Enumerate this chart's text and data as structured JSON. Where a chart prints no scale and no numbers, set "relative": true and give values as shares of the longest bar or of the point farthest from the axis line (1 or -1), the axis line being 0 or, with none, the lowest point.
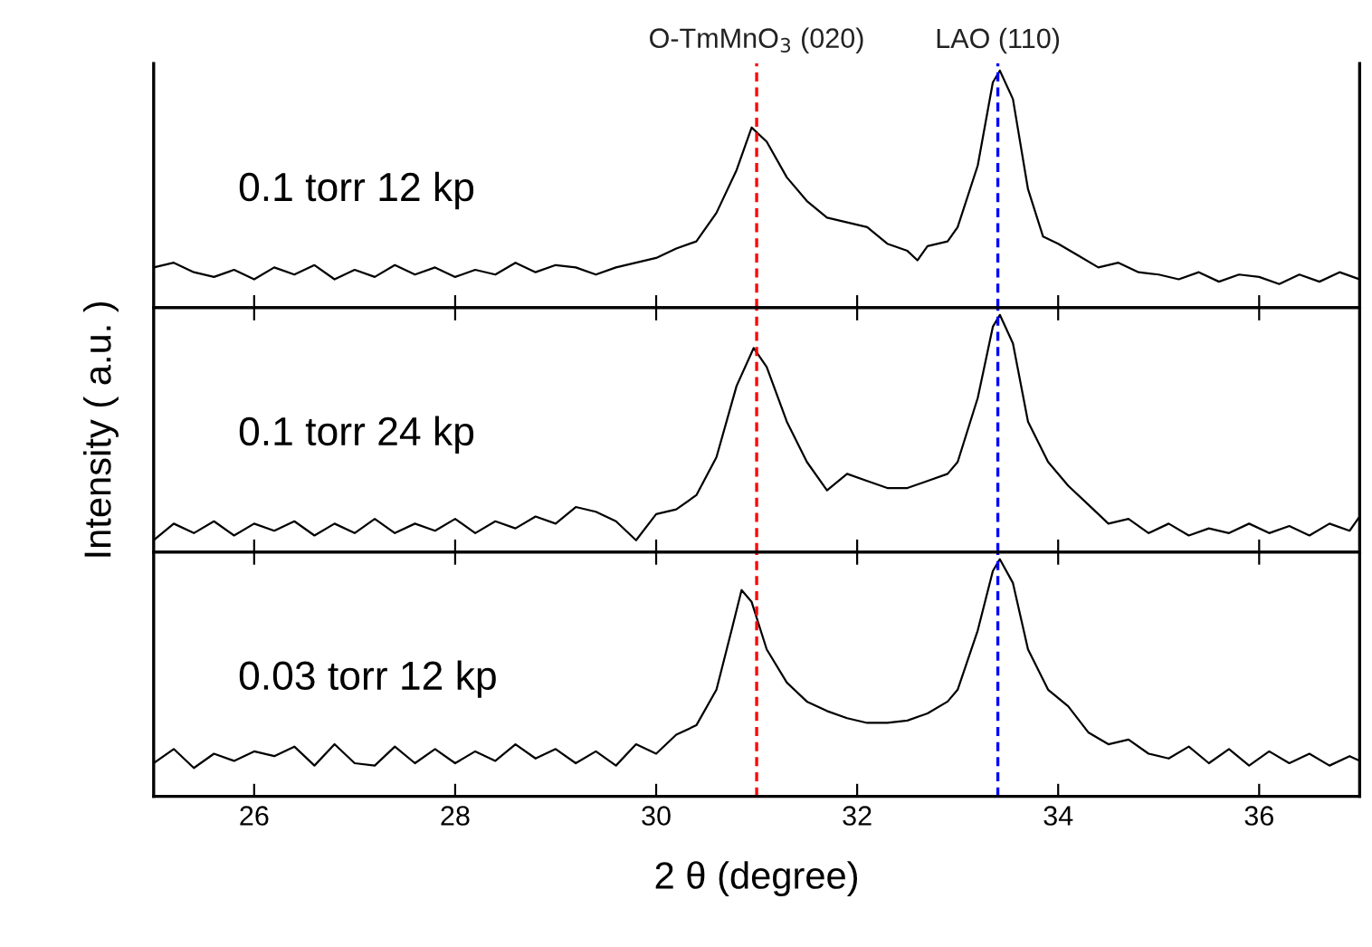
{
  "chart_data": [
    {
      "type": "line",
      "relative": true,
      "xlim": [
        25,
        37
      ],
      "xticks": [
        26,
        28,
        30,
        32,
        34,
        36
      ],
      "tick_labels": false,
      "ref_lines": [
        {
          "axis": "x",
          "value": 31.0,
          "label": "O-TmMnO$_{3}$ (020)",
          "color": "#ff0000",
          "line_style": "dashed"
        },
        {
          "axis": "x",
          "value": 33.4,
          "label": "LAO (110)",
          "color": "#0000ff",
          "line_style": "dashed"
        }
      ],
      "annotations": [
        "0.1 torr 12 kp"
      ],
      "series": [
        {
          "color": "#000000",
          "x": [
            25.0,
            25.2,
            25.4,
            25.6,
            25.8,
            26.0,
            26.2,
            26.4,
            26.6,
            26.8,
            27.0,
            27.2,
            27.4,
            27.6,
            27.8,
            28.0,
            28.2,
            28.4,
            28.6,
            28.8,
            29.0,
            29.2,
            29.4,
            29.6,
            29.8,
            30.0,
            30.2,
            30.4,
            30.6,
            30.8,
            30.95,
            31.1,
            31.3,
            31.5,
            31.7,
            31.9,
            32.1,
            32.3,
            32.5,
            32.6,
            32.7,
            32.9,
            33.0,
            33.2,
            33.35,
            33.42,
            33.55,
            33.7,
            33.85,
            34.0,
            34.2,
            34.4,
            34.6,
            34.8,
            35.0,
            35.2,
            35.4,
            35.6,
            35.8,
            36.0,
            36.2,
            36.4,
            36.6,
            36.8,
            37.0
          ],
          "values": [
            0.17,
            0.19,
            0.15,
            0.13,
            0.16,
            0.12,
            0.17,
            0.14,
            0.18,
            0.12,
            0.16,
            0.13,
            0.18,
            0.14,
            0.17,
            0.13,
            0.16,
            0.14,
            0.19,
            0.15,
            0.18,
            0.17,
            0.14,
            0.17,
            0.19,
            0.21,
            0.25,
            0.28,
            0.4,
            0.58,
            0.76,
            0.7,
            0.55,
            0.45,
            0.38,
            0.36,
            0.34,
            0.27,
            0.24,
            0.2,
            0.26,
            0.28,
            0.34,
            0.6,
            0.95,
            1.0,
            0.88,
            0.5,
            0.3,
            0.27,
            0.22,
            0.17,
            0.19,
            0.15,
            0.14,
            0.12,
            0.15,
            0.11,
            0.14,
            0.13,
            0.1,
            0.14,
            0.11,
            0.15,
            0.12
          ]
        }
      ]
    },
    {
      "type": "line",
      "relative": true,
      "xlim": [
        25,
        37
      ],
      "xticks": [
        26,
        28,
        30,
        32,
        34,
        36
      ],
      "tick_labels": false,
      "ylabel": "Intensity ( a.u. )",
      "ref_lines": [
        {
          "axis": "x",
          "value": 31.0,
          "color": "#ff0000",
          "line_style": "dashed"
        },
        {
          "axis": "x",
          "value": 33.4,
          "color": "#0000ff",
          "line_style": "dashed"
        }
      ],
      "annotations": [
        "0.1 torr 24 kp"
      ],
      "series": [
        {
          "color": "#000000",
          "x": [
            25.0,
            25.2,
            25.4,
            25.6,
            25.8,
            26.0,
            26.2,
            26.4,
            26.6,
            26.8,
            27.0,
            27.2,
            27.4,
            27.6,
            27.8,
            28.0,
            28.2,
            28.4,
            28.6,
            28.8,
            29.0,
            29.2,
            29.4,
            29.6,
            29.8,
            30.0,
            30.2,
            30.4,
            30.6,
            30.8,
            30.97,
            31.1,
            31.3,
            31.5,
            31.7,
            31.9,
            32.1,
            32.3,
            32.5,
            32.7,
            32.9,
            33.0,
            33.2,
            33.35,
            33.42,
            33.55,
            33.7,
            33.9,
            34.1,
            34.3,
            34.5,
            34.7,
            34.9,
            35.1,
            35.3,
            35.5,
            35.7,
            35.9,
            36.1,
            36.3,
            36.5,
            36.7,
            36.9,
            37.0
          ],
          "values": [
            0.05,
            0.12,
            0.08,
            0.13,
            0.07,
            0.12,
            0.09,
            0.13,
            0.07,
            0.12,
            0.08,
            0.14,
            0.08,
            0.12,
            0.09,
            0.14,
            0.08,
            0.13,
            0.1,
            0.15,
            0.12,
            0.19,
            0.17,
            0.13,
            0.05,
            0.16,
            0.18,
            0.24,
            0.4,
            0.7,
            0.86,
            0.78,
            0.55,
            0.38,
            0.26,
            0.33,
            0.3,
            0.27,
            0.27,
            0.3,
            0.33,
            0.38,
            0.65,
            0.95,
            1.0,
            0.88,
            0.55,
            0.38,
            0.28,
            0.2,
            0.12,
            0.14,
            0.08,
            0.12,
            0.07,
            0.1,
            0.08,
            0.12,
            0.08,
            0.11,
            0.07,
            0.12,
            0.09,
            0.15
          ]
        }
      ]
    },
    {
      "type": "line",
      "relative": true,
      "xlim": [
        25,
        37
      ],
      "xticks": [
        26,
        28,
        30,
        32,
        34,
        36
      ],
      "tick_labels": "x",
      "xlabel": "2 θ (degree)",
      "ref_lines": [
        {
          "axis": "x",
          "value": 31.0,
          "color": "#ff0000",
          "line_style": "dashed"
        },
        {
          "axis": "x",
          "value": 33.4,
          "color": "#0000ff",
          "line_style": "dashed"
        }
      ],
      "annotations": [
        "0.03 torr 12 kp"
      ],
      "series": [
        {
          "color": "#000000",
          "x": [
            25.0,
            25.2,
            25.4,
            25.6,
            25.8,
            26.0,
            26.2,
            26.4,
            26.6,
            26.8,
            27.0,
            27.2,
            27.4,
            27.6,
            27.8,
            28.0,
            28.2,
            28.4,
            28.6,
            28.8,
            29.0,
            29.2,
            29.4,
            29.6,
            29.8,
            30.0,
            30.2,
            30.4,
            30.6,
            30.75,
            30.85,
            30.95,
            31.1,
            31.3,
            31.5,
            31.7,
            31.9,
            32.1,
            32.3,
            32.5,
            32.7,
            32.9,
            33.0,
            33.2,
            33.35,
            33.42,
            33.55,
            33.7,
            33.9,
            34.1,
            34.3,
            34.5,
            34.7,
            34.9,
            35.1,
            35.3,
            35.5,
            35.7,
            35.9,
            36.1,
            36.3,
            36.5,
            36.7,
            36.9,
            37.0
          ],
          "values": [
            0.14,
            0.2,
            0.12,
            0.18,
            0.15,
            0.19,
            0.17,
            0.21,
            0.13,
            0.22,
            0.14,
            0.13,
            0.21,
            0.14,
            0.2,
            0.14,
            0.19,
            0.15,
            0.22,
            0.16,
            0.2,
            0.14,
            0.19,
            0.13,
            0.22,
            0.18,
            0.26,
            0.3,
            0.45,
            0.7,
            0.87,
            0.82,
            0.62,
            0.48,
            0.4,
            0.36,
            0.33,
            0.31,
            0.31,
            0.32,
            0.35,
            0.4,
            0.45,
            0.7,
            0.95,
            1.0,
            0.9,
            0.62,
            0.45,
            0.38,
            0.27,
            0.22,
            0.24,
            0.18,
            0.16,
            0.21,
            0.14,
            0.2,
            0.13,
            0.19,
            0.14,
            0.18,
            0.13,
            0.17,
            0.15
          ]
        }
      ]
    }
  ]
}
